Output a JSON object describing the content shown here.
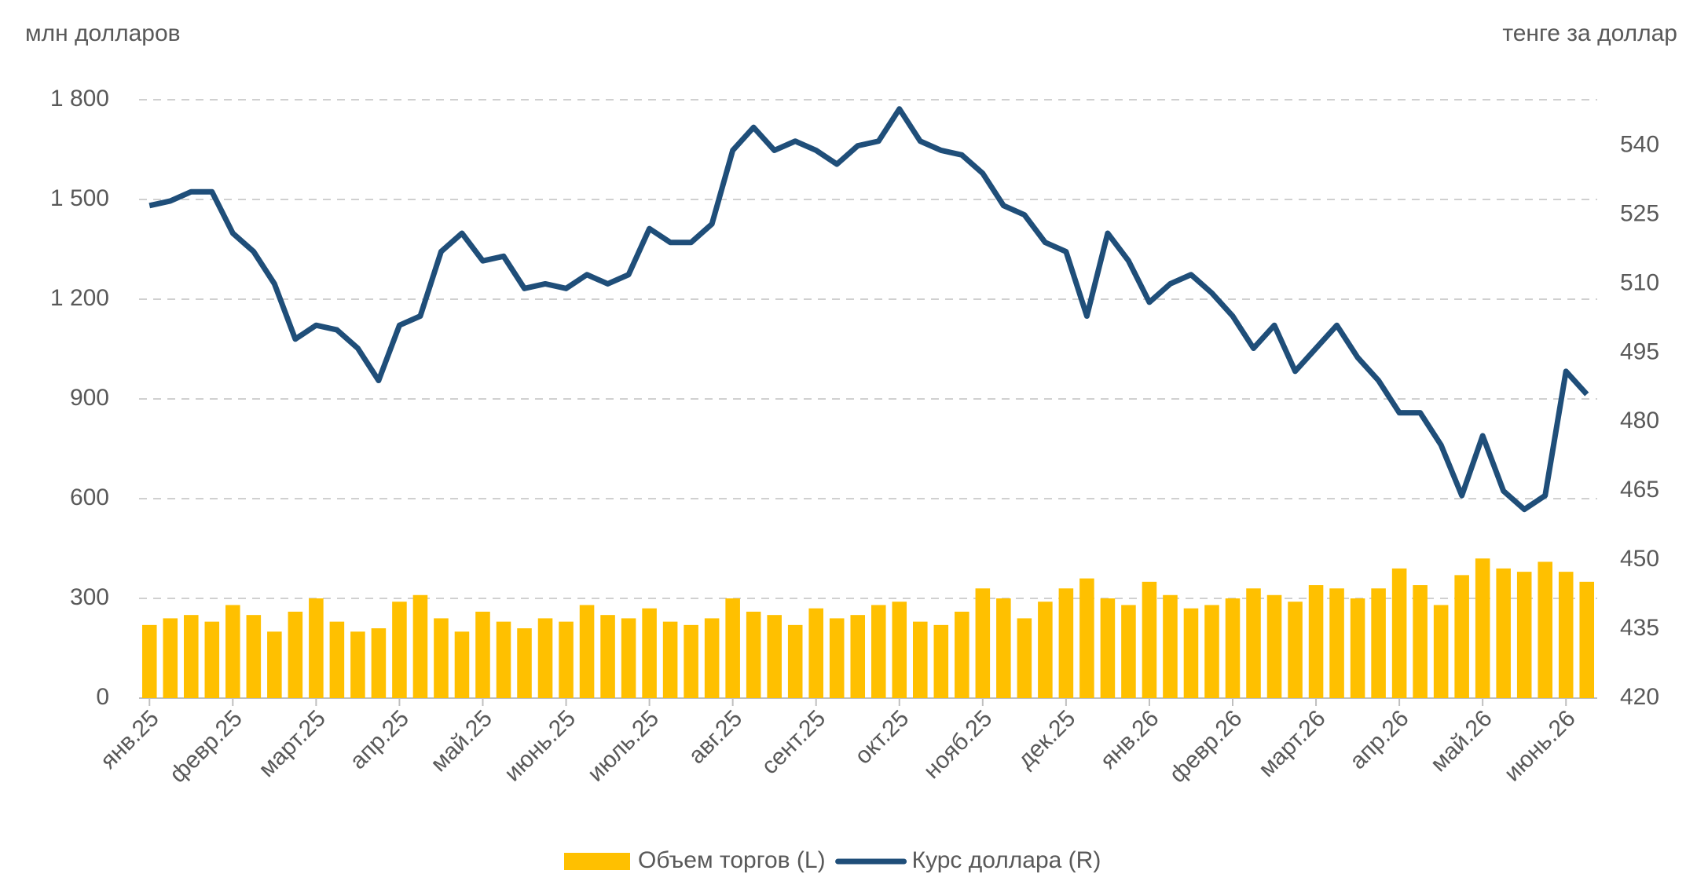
{
  "chart_data": {
    "type": "combo",
    "y_label": "млн долларов",
    "y2_label": "тенге за доллар",
    "categories": [
      "янв.25",
      null,
      null,
      null,
      "февр.25",
      null,
      null,
      null,
      "март.25",
      null,
      null,
      null,
      "апр.25",
      null,
      null,
      null,
      "май.25",
      null,
      null,
      null,
      "июнь.25",
      null,
      null,
      null,
      "июль.25",
      null,
      null,
      null,
      "авг.25",
      null,
      null,
      null,
      "сент.25",
      null,
      null,
      null,
      "окт.25",
      null,
      null,
      null,
      "нояб.25",
      null,
      null,
      null,
      "дек.25",
      null,
      null,
      null,
      "янв.26",
      null,
      null,
      null,
      "февр.26",
      null,
      null,
      null,
      "март.26",
      null,
      null,
      null,
      "апр.26",
      null,
      null,
      null,
      "май.26",
      null,
      null,
      null,
      "июнь.26",
      null
    ],
    "series": [
      {
        "name": "Объем торгов (L)",
        "type": "bar",
        "axis": "y",
        "color": "#ffc000",
        "values": [
          220,
          240,
          250,
          230,
          280,
          250,
          200,
          260,
          300,
          230,
          200,
          210,
          290,
          310,
          240,
          200,
          260,
          230,
          210,
          240,
          230,
          280,
          250,
          240,
          270,
          230,
          220,
          240,
          300,
          260,
          250,
          220,
          270,
          240,
          250,
          280,
          290,
          230,
          220,
          260,
          330,
          300,
          240,
          290,
          330,
          360,
          300,
          280,
          350,
          310,
          270,
          280,
          300,
          330,
          310,
          290,
          340,
          330,
          300,
          330,
          390,
          340,
          280,
          370,
          420,
          390,
          380,
          410,
          380,
          350
        ]
      },
      {
        "name": "Курс доллара (R)",
        "type": "line",
        "axis": "y2",
        "color": "#1f4e79",
        "values": [
          527,
          528,
          530,
          530,
          521,
          517,
          510,
          498,
          501,
          500,
          496,
          489,
          501,
          503,
          517,
          521,
          515,
          516,
          509,
          510,
          509,
          512,
          510,
          512,
          522,
          519,
          519,
          523,
          539,
          544,
          539,
          541,
          539,
          536,
          540,
          541,
          548,
          541,
          539,
          538,
          534,
          527,
          525,
          519,
          517,
          503,
          521,
          515,
          506,
          510,
          512,
          508,
          503,
          496,
          501,
          491,
          496,
          501,
          494,
          489,
          482,
          482,
          475,
          464,
          477,
          465,
          461,
          464,
          491,
          486
        ]
      }
    ],
    "ylim": [
      0,
      1800
    ],
    "yticks": [
      0,
      300,
      600,
      900,
      {
        "value": 1200,
        "label": "1 200"
      },
      {
        "value": 1500,
        "label": "1 500"
      },
      {
        "value": 1800,
        "label": "1 800"
      }
    ],
    "y2lim": [
      420,
      550
    ],
    "y2ticks": [
      420,
      435,
      450,
      465,
      480,
      495,
      510,
      525,
      540
    ],
    "grid": true
  }
}
